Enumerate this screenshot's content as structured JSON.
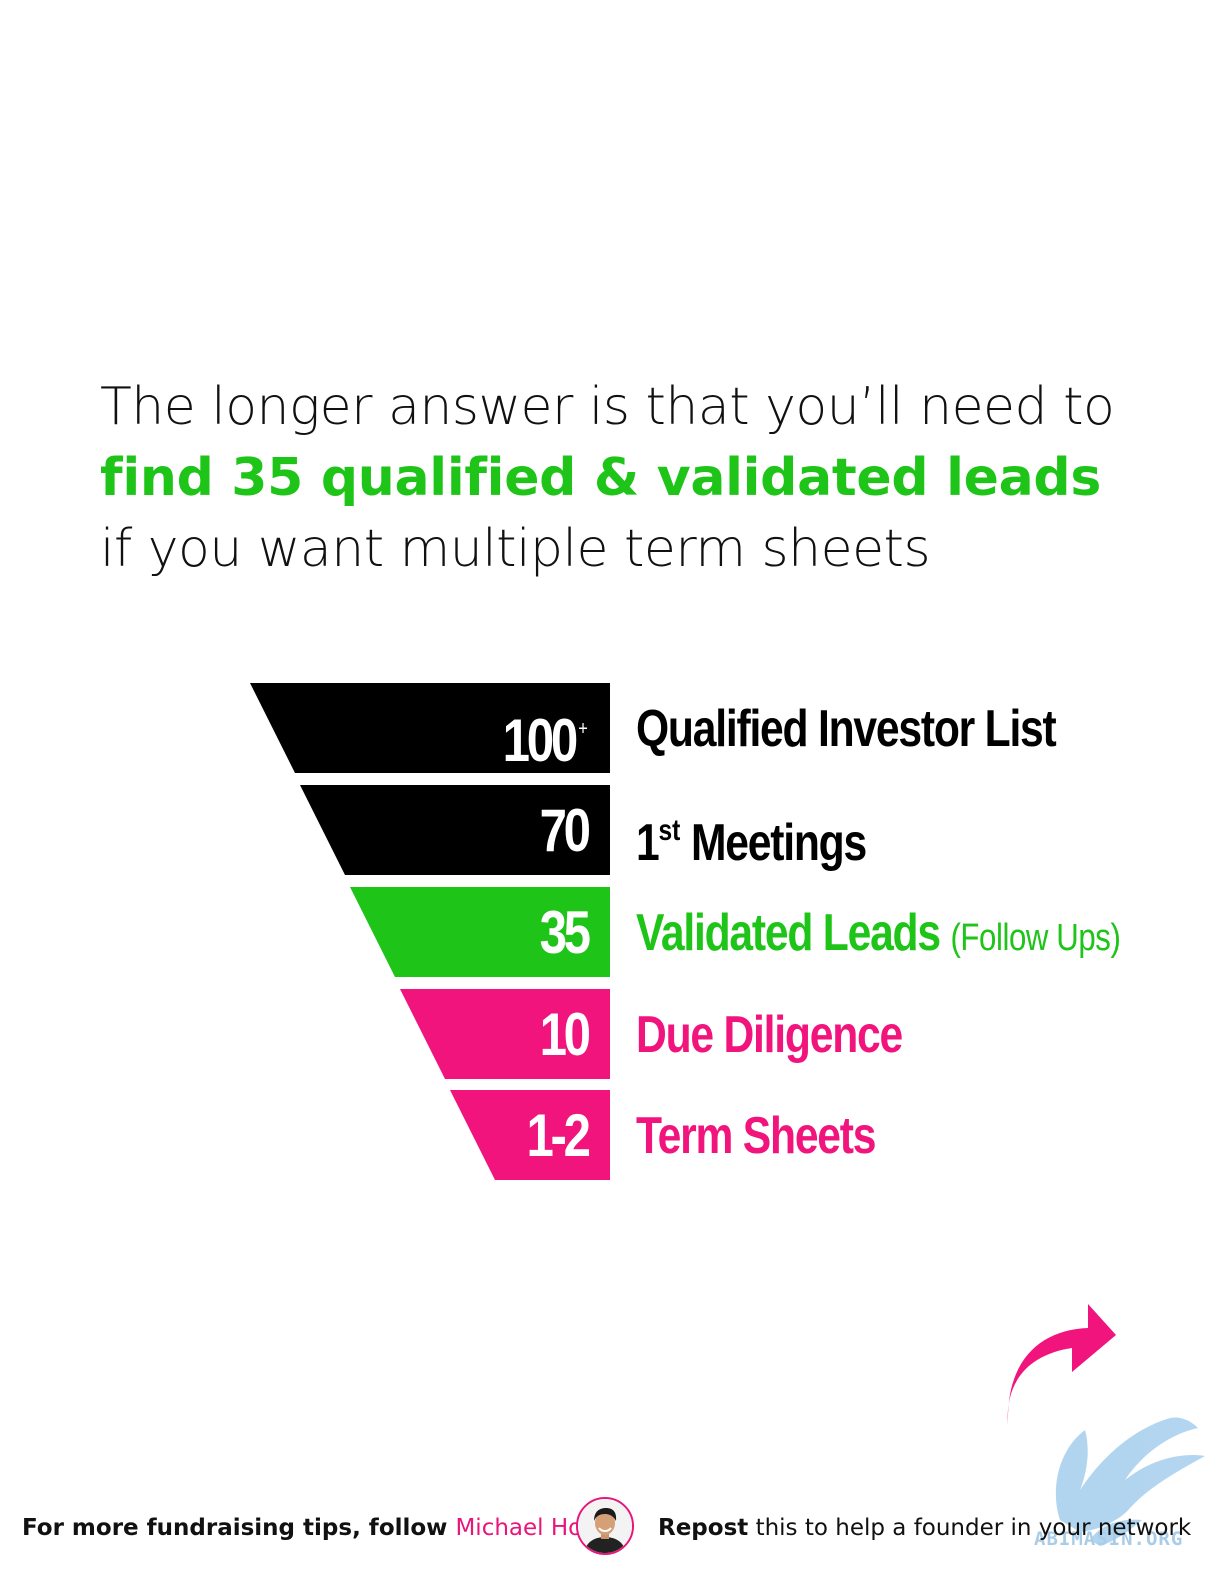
{
  "headline": {
    "line1": "The longer answer is that you’ll need to",
    "line2": "find 35 qualified & validated leads",
    "line3": "if you want multiple term sheets"
  },
  "funnel": {
    "stages": [
      {
        "number": "100",
        "number_suffix": "+",
        "label": "Qualified Investor List",
        "label_sup": "",
        "note": "",
        "color": "#000000",
        "label_color": "#000000"
      },
      {
        "number": "70",
        "number_suffix": "",
        "label_prefix": "1",
        "label_sup": "st",
        "label": "Meetings",
        "note": "",
        "color": "#000000",
        "label_color": "#000000"
      },
      {
        "number": "35",
        "number_suffix": "",
        "label": "Validated Leads",
        "label_sup": "",
        "note": "(Follow Ups)",
        "color": "#1fc419",
        "label_color": "#1fc419"
      },
      {
        "number": "10",
        "number_suffix": "",
        "label": "Due Diligence",
        "label_sup": "",
        "note": "",
        "color": "#f0147c",
        "label_color": "#f0147c"
      },
      {
        "number": "1-2",
        "number_suffix": "",
        "label": "Term Sheets",
        "label_sup": "",
        "note": "",
        "color": "#f0147c",
        "label_color": "#f0147c"
      }
    ]
  },
  "footer": {
    "left_text": "For more fundraising tips, follow ",
    "author_name": "Michael Ho",
    "right_strong": "Repost",
    "right_text": " this to help a founder in your network",
    "watermark_text": "ABIMASIN.ORG"
  },
  "icons": {
    "arrow": "curved-share-arrow-icon",
    "watermark": "griffin-logo-icon",
    "avatar": "author-avatar"
  },
  "colors": {
    "green": "#1fc419",
    "pink": "#f0147c",
    "black": "#000000"
  }
}
